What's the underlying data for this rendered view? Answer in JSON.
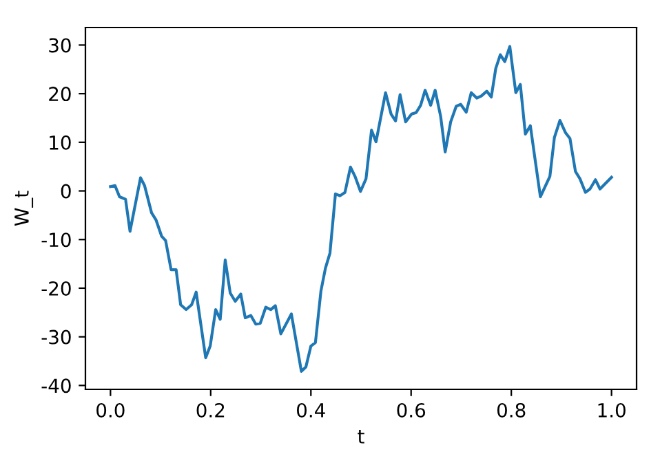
{
  "chart_data": {
    "type": "line",
    "xlabel": "t",
    "ylabel": "W_t",
    "series": [
      {
        "color": "#1f77b4",
        "x": [
          0,
          0.009,
          0.018,
          0.03,
          0.039,
          0.06,
          0.068,
          0.082,
          0.091,
          0.102,
          0.11,
          0.121,
          0.131,
          0.14,
          0.151,
          0.162,
          0.171,
          0.19,
          0.199,
          0.21,
          0.219,
          0.229,
          0.239,
          0.249,
          0.26,
          0.269,
          0.28,
          0.29,
          0.299,
          0.31,
          0.32,
          0.329,
          0.34,
          0.361,
          0.381,
          0.39,
          0.4,
          0.409,
          0.42,
          0.429,
          0.438,
          0.449,
          0.458,
          0.468,
          0.479,
          0.488,
          0.499,
          0.51,
          0.521,
          0.53,
          0.549,
          0.56,
          0.569,
          0.578,
          0.589,
          0.601,
          0.61,
          0.619,
          0.628,
          0.639,
          0.648,
          0.659,
          0.668,
          0.679,
          0.69,
          0.699,
          0.71,
          0.72,
          0.731,
          0.74,
          0.751,
          0.76,
          0.769,
          0.778,
          0.787,
          0.797,
          0.809,
          0.818,
          0.828,
          0.838,
          0.847,
          0.858,
          0.877,
          0.886,
          0.897,
          0.908,
          0.917,
          0.928,
          0.937,
          0.948,
          0.957,
          0.968,
          0.977,
          1.0
        ],
        "values": [
          0.9,
          1.1,
          -1.2,
          -1.7,
          -8.3,
          2.7,
          1.1,
          -4.5,
          -6,
          -9.3,
          -10.2,
          -16.2,
          -16.2,
          -23.4,
          -24.4,
          -23.4,
          -20.8,
          -34.3,
          -31.9,
          -24.4,
          -26.4,
          -14.2,
          -21,
          -22.7,
          -21.2,
          -26.1,
          -25.6,
          -27.4,
          -27.2,
          -23.9,
          -24.4,
          -23.6,
          -29.4,
          -25.3,
          -37.1,
          -36.2,
          -31.9,
          -31.2,
          -20.6,
          -15.9,
          -12.8,
          -0.6,
          -1,
          -0.3,
          4.9,
          3,
          -0.1,
          2.5,
          12.5,
          10.1,
          20.2,
          15.8,
          14.4,
          19.8,
          14.2,
          15.8,
          16.1,
          17.6,
          20.7,
          17.6,
          20.7,
          15.3,
          8,
          14.2,
          17.4,
          17.8,
          16.2,
          20.2,
          19.1,
          19.5,
          20.5,
          19.3,
          25.2,
          28,
          26.6,
          29.7,
          20.2,
          21.9,
          11.7,
          13.4,
          6.8,
          -1.2,
          3,
          11,
          14.5,
          12,
          10.8,
          4,
          2.5,
          -0.3,
          0.4,
          2.3,
          0.4,
          2.8
        ]
      }
    ],
    "xlim": [
      -0.05,
      1.05
    ],
    "ylim": [
      -40.8,
      33.6
    ],
    "xticks": [
      {
        "value": 0,
        "label": "0.0"
      },
      {
        "value": 0.2,
        "label": "0.2"
      },
      {
        "value": 0.4,
        "label": "0.4"
      },
      {
        "value": 0.6,
        "label": "0.6"
      },
      {
        "value": 0.8,
        "label": "0.8"
      },
      {
        "value": 1,
        "label": "1.0"
      }
    ],
    "yticks": [
      -40,
      -30,
      -20,
      -10,
      0,
      10,
      20,
      30
    ],
    "grid": false,
    "legend": false,
    "marker": "none",
    "line_style": "solid"
  }
}
